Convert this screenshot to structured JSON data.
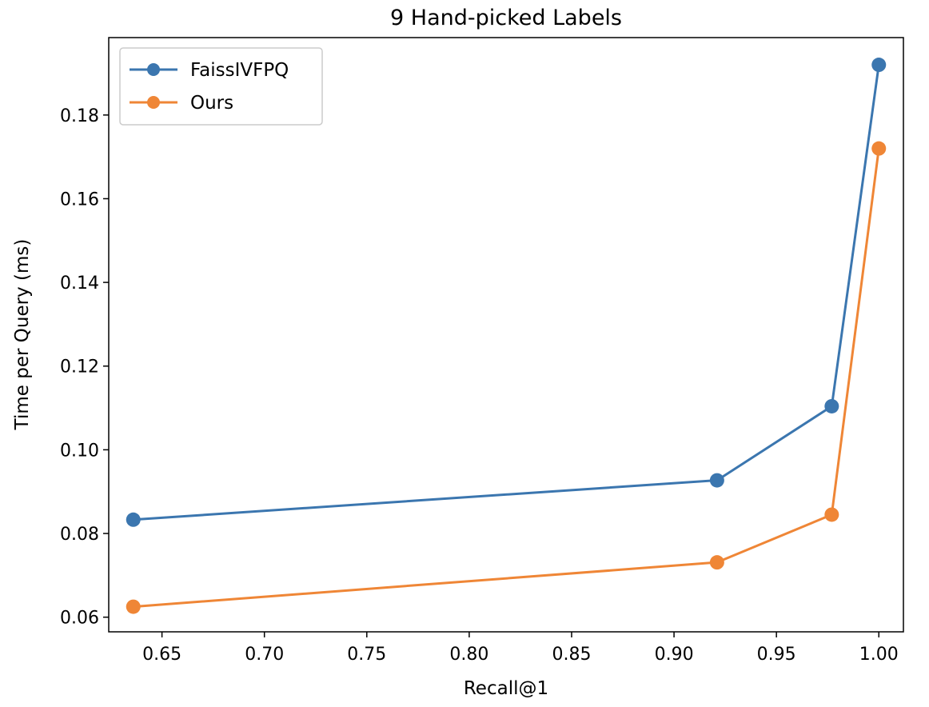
{
  "chart_data": {
    "type": "line",
    "title": "9 Hand-picked Labels",
    "xlabel": "Recall@1",
    "ylabel": "Time per Query (ms)",
    "xlim": [
      0.624,
      1.012
    ],
    "ylim": [
      0.0565,
      0.1985
    ],
    "xticks": [
      0.65,
      0.7,
      0.75,
      0.8,
      0.85,
      0.9,
      0.95,
      1.0
    ],
    "xtick_labels": [
      "0.65",
      "0.70",
      "0.75",
      "0.80",
      "0.85",
      "0.90",
      "0.95",
      "1.00"
    ],
    "yticks": [
      0.06,
      0.08,
      0.1,
      0.12,
      0.14,
      0.16,
      0.18
    ],
    "ytick_labels": [
      "0.06",
      "0.08",
      "0.10",
      "0.12",
      "0.14",
      "0.16",
      "0.18"
    ],
    "grid": false,
    "legend_position": "top-left",
    "series": [
      {
        "name": "FaissIVFPQ",
        "color": "#3b76af",
        "x": [
          0.636,
          0.921,
          0.977,
          1.0
        ],
        "y": [
          0.0833,
          0.0927,
          0.1104,
          0.192
        ]
      },
      {
        "name": "Ours",
        "color": "#ef8636",
        "x": [
          0.636,
          0.921,
          0.977,
          1.0
        ],
        "y": [
          0.0625,
          0.0731,
          0.0845,
          0.172
        ]
      }
    ]
  }
}
